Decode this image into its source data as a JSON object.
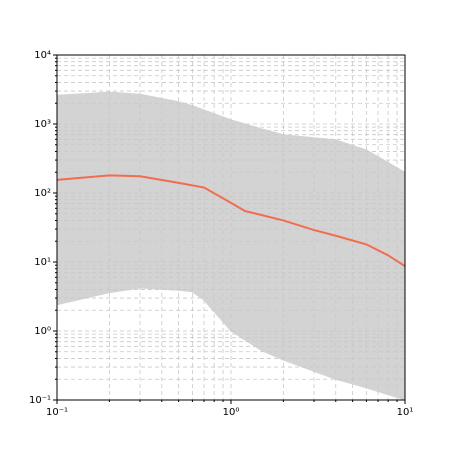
{
  "chart_data": {
    "type": "line",
    "xlog": true,
    "ylog": true,
    "grid": true,
    "xlim": [
      0.1,
      10
    ],
    "ylim": [
      0.1,
      10000
    ],
    "xticks": [
      {
        "value": 0.1,
        "label": "10⁻¹"
      },
      {
        "value": 1,
        "label": "10⁰"
      },
      {
        "value": 10,
        "label": "10¹"
      }
    ],
    "yticks": [
      {
        "value": 0.1,
        "label": "10⁻¹"
      },
      {
        "value": 1,
        "label": "10⁰"
      },
      {
        "value": 10,
        "label": "10¹"
      },
      {
        "value": 100,
        "label": "10²"
      },
      {
        "value": 1000,
        "label": "10³"
      },
      {
        "value": 10000,
        "label": "10⁴"
      }
    ],
    "xminorticks": [
      0.2,
      0.3,
      0.4,
      0.5,
      0.6,
      0.7,
      0.8,
      0.9,
      2,
      3,
      4,
      5,
      6,
      7,
      8,
      9
    ],
    "yminorticks": [
      0.2,
      0.3,
      0.4,
      0.5,
      0.6,
      0.7,
      0.8,
      0.9,
      2,
      3,
      4,
      5,
      6,
      7,
      8,
      9,
      20,
      30,
      40,
      50,
      60,
      70,
      80,
      90,
      200,
      300,
      400,
      500,
      600,
      700,
      800,
      900,
      2000,
      3000,
      4000,
      5000,
      6000,
      7000,
      8000,
      9000
    ],
    "band": {
      "color": "#d3d3d3",
      "x": [
        0.1,
        0.2,
        0.3,
        0.5,
        0.6,
        0.7,
        1,
        1.5,
        2,
        4,
        6,
        10
      ],
      "upper": [
        2600,
        2900,
        2700,
        2100,
        1850,
        1600,
        1150,
        850,
        700,
        590,
        420,
        200
      ],
      "lower": [
        2.4,
        3.6,
        4.2,
        3.9,
        3.7,
        2.8,
        1.0,
        0.52,
        0.38,
        0.2,
        0.15,
        0.1
      ]
    },
    "x": [
      0.1,
      0.2,
      0.3,
      0.5,
      0.7,
      1,
      1.2,
      2,
      3,
      4,
      6,
      8,
      10
    ],
    "series": [
      {
        "color": "#f26c4f",
        "values": [
          155,
          180,
          175,
          140,
          120,
          72,
          55,
          40,
          29,
          24,
          18,
          12.5,
          8.7
        ]
      }
    ]
  }
}
